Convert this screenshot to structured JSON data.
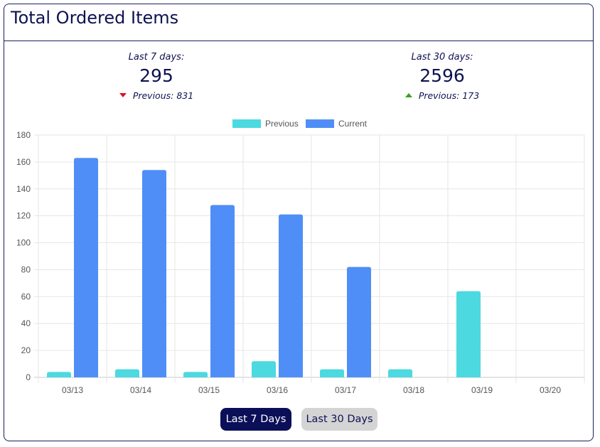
{
  "header": {
    "title": "Total Ordered Items"
  },
  "stats": [
    {
      "label": "Last 7 days:",
      "value": "295",
      "previous": "Previous: 831",
      "trend": "down"
    },
    {
      "label": "Last 30 days:",
      "value": "2596",
      "previous": "Previous: 173",
      "trend": "up"
    }
  ],
  "chart_data": {
    "type": "bar",
    "categories": [
      "03/13",
      "03/14",
      "03/15",
      "03/16",
      "03/17",
      "03/18",
      "03/19",
      "03/20"
    ],
    "series": [
      {
        "name": "Previous",
        "color": "#4dd9e0",
        "values": [
          4,
          6,
          4,
          12,
          6,
          6,
          64,
          0
        ]
      },
      {
        "name": "Current",
        "color": "#4f8ef7",
        "values": [
          163,
          154,
          128,
          121,
          82,
          0,
          0,
          0
        ]
      }
    ],
    "yticks": [
      0,
      20,
      40,
      60,
      80,
      100,
      120,
      140,
      160,
      180
    ],
    "ylim": [
      0,
      180
    ],
    "grid": true,
    "legend": "top-center"
  },
  "buttons": {
    "last7": "Last 7 Days",
    "last30": "Last 30 Days"
  },
  "colors": {
    "title": "#0d1250",
    "down": "#d9142b",
    "up": "#36a21c",
    "active_button": "#0b0f57"
  },
  "icons": {
    "down": "triangle-down-icon",
    "up": "triangle-up-icon"
  }
}
